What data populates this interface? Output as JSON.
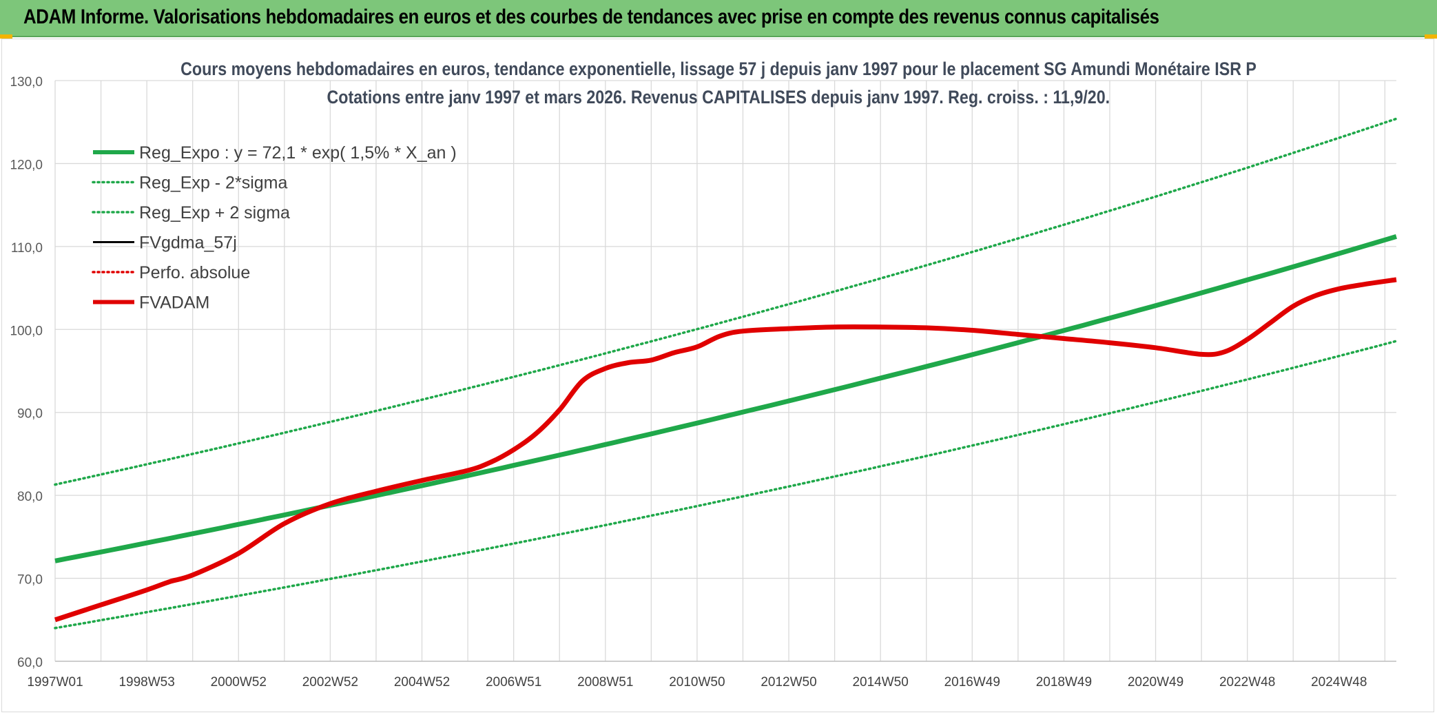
{
  "banner": {
    "title": "ADAM Informe. Valorisations hebdomadaires en euros et des courbes de tendances avec prise en compte des revenus connus capitalisés",
    "color": "#7dc67a"
  },
  "chart_data": {
    "type": "line",
    "title": "Cours moyens hebdomadaires en euros, tendance exponentielle, lissage 57 j depuis janv 1997 pour le placement SG Amundi Monétaire ISR P",
    "subtitle": "Cotations entre janv 1997 et mars 2026. Revenus CAPITALISES depuis janv 1997. Reg. croiss. : 11,9/20.",
    "xlabel": "",
    "ylabel": "",
    "xlim": [
      1997.0,
      2026.25
    ],
    "ylim": [
      60,
      130
    ],
    "y_ticks": [
      "60,0",
      "70,0",
      "80,0",
      "90,0",
      "100,0",
      "110,0",
      "120,0",
      "130,0"
    ],
    "y_tick_values": [
      60,
      70,
      80,
      90,
      100,
      110,
      120,
      130
    ],
    "x_tick_labels": [
      "1997W01",
      "1998W53",
      "2000W52",
      "2002W52",
      "2004W52",
      "2006W51",
      "2008W51",
      "2010W50",
      "2012W50",
      "2014W50",
      "2016W49",
      "2018W49",
      "2020W49",
      "2022W48",
      "2024W48"
    ],
    "x_tick_values": [
      1997.0,
      1999.0,
      2001.0,
      2003.0,
      2005.0,
      2007.0,
      2009.0,
      2011.0,
      2013.0,
      2015.0,
      2017.0,
      2019.0,
      2021.0,
      2023.0,
      2025.0
    ],
    "grid": true,
    "legend_position": "top-left",
    "series": [
      {
        "name": "Reg_Expo : y = 72,1 * exp( 1,5% *  X_an )",
        "style": "solid-thick",
        "color": "#1fa84a",
        "x": [
          1997.0,
          2026.25
        ],
        "values": [
          72.1,
          111.2
        ]
      },
      {
        "name": "Reg_Exp - 2*sigma",
        "style": "dotted",
        "color": "#1fa84a",
        "x": [
          1997.0,
          2026.25
        ],
        "values": [
          64.0,
          98.6
        ]
      },
      {
        "name": "Reg_Exp + 2 sigma",
        "style": "dotted",
        "color": "#1fa84a",
        "x": [
          1997.0,
          2026.25
        ],
        "values": [
          81.3,
          125.4
        ]
      },
      {
        "name": "FVgdma_57j",
        "style": "solid",
        "color": "#000000",
        "x": [],
        "values": []
      },
      {
        "name": "Perfo. absolue",
        "style": "dotted",
        "color": "#e00000",
        "x": [],
        "values": []
      },
      {
        "name": "FVADAM",
        "style": "solid-thick",
        "color": "#e00000",
        "x": [
          1997.0,
          1998.0,
          1999.0,
          1999.5,
          2000.0,
          2001.0,
          2002.0,
          2003.0,
          2004.0,
          2005.0,
          2006.0,
          2006.5,
          2007.0,
          2007.5,
          2008.0,
          2008.5,
          2009.0,
          2009.5,
          2010.0,
          2010.5,
          2011.0,
          2011.5,
          2012.0,
          2013.0,
          2014.0,
          2015.0,
          2016.0,
          2017.0,
          2018.0,
          2019.0,
          2020.0,
          2021.0,
          2022.0,
          2022.5,
          2023.0,
          2023.5,
          2024.0,
          2024.5,
          2025.0,
          2025.5,
          2026.25
        ],
        "values": [
          65.0,
          66.8,
          68.6,
          69.6,
          70.4,
          73.0,
          76.6,
          79.0,
          80.5,
          81.8,
          83.0,
          84.0,
          85.5,
          87.5,
          90.3,
          93.8,
          95.3,
          96.0,
          96.3,
          97.2,
          97.9,
          99.2,
          99.8,
          100.1,
          100.3,
          100.3,
          100.2,
          99.9,
          99.4,
          98.9,
          98.4,
          97.8,
          97.0,
          97.3,
          98.8,
          100.8,
          102.8,
          104.1,
          104.9,
          105.4,
          106.0
        ]
      }
    ]
  }
}
